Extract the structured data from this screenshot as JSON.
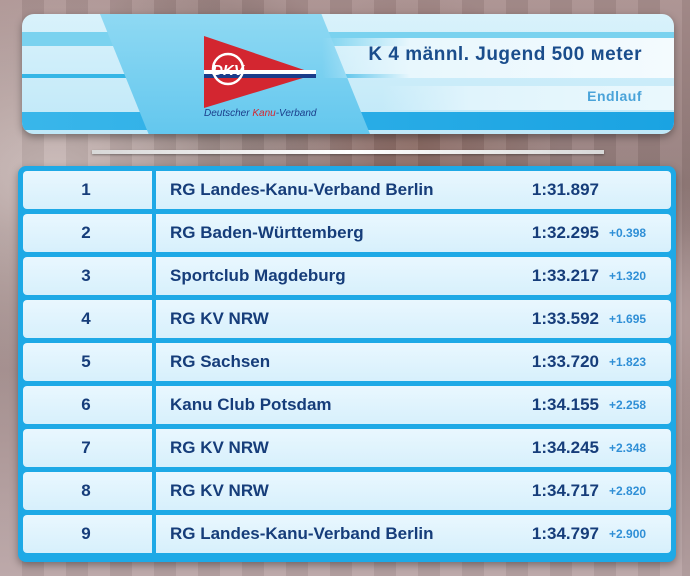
{
  "header": {
    "title": "K 4 männl. Jugend 500 мeter",
    "subtitle": "Endlauf",
    "logo": {
      "flag_text": "DKV",
      "caption_part1": "Deutscher ",
      "caption_part2": "Kanu",
      "caption_part3": "-Verband",
      "colors": {
        "red": "#d32630",
        "blue": "#1a3c8a",
        "white": "#ffffff"
      }
    }
  },
  "results": [
    {
      "rank": "1",
      "club": "RG Landes-Kanu-Verband Berlin",
      "time": "1:31.897",
      "diff": ""
    },
    {
      "rank": "2",
      "club": "RG Baden-Württemberg",
      "time": "1:32.295",
      "diff": "+0.398"
    },
    {
      "rank": "3",
      "club": "Sportclub Magdeburg",
      "time": "1:33.217",
      "diff": "+1.320"
    },
    {
      "rank": "4",
      "club": "RG KV NRW",
      "time": "1:33.592",
      "diff": "+1.695"
    },
    {
      "rank": "5",
      "club": "RG Sachsen",
      "time": "1:33.720",
      "diff": "+1.823"
    },
    {
      "rank": "6",
      "club": "Kanu Club Potsdam",
      "time": "1:34.155",
      "diff": "+2.258"
    },
    {
      "rank": "7",
      "club": "RG KV NRW",
      "time": "1:34.245",
      "diff": "+2.348"
    },
    {
      "rank": "8",
      "club": "RG KV NRW",
      "time": "1:34.717",
      "diff": "+2.820"
    },
    {
      "rank": "9",
      "club": "RG Landes-Kanu-Verband Berlin",
      "time": "1:34.797",
      "diff": "+2.900"
    }
  ],
  "colors": {
    "accent_blue": "#1ea9e6",
    "text_navy": "#163d7a",
    "diff_blue": "#2f8fd6"
  }
}
